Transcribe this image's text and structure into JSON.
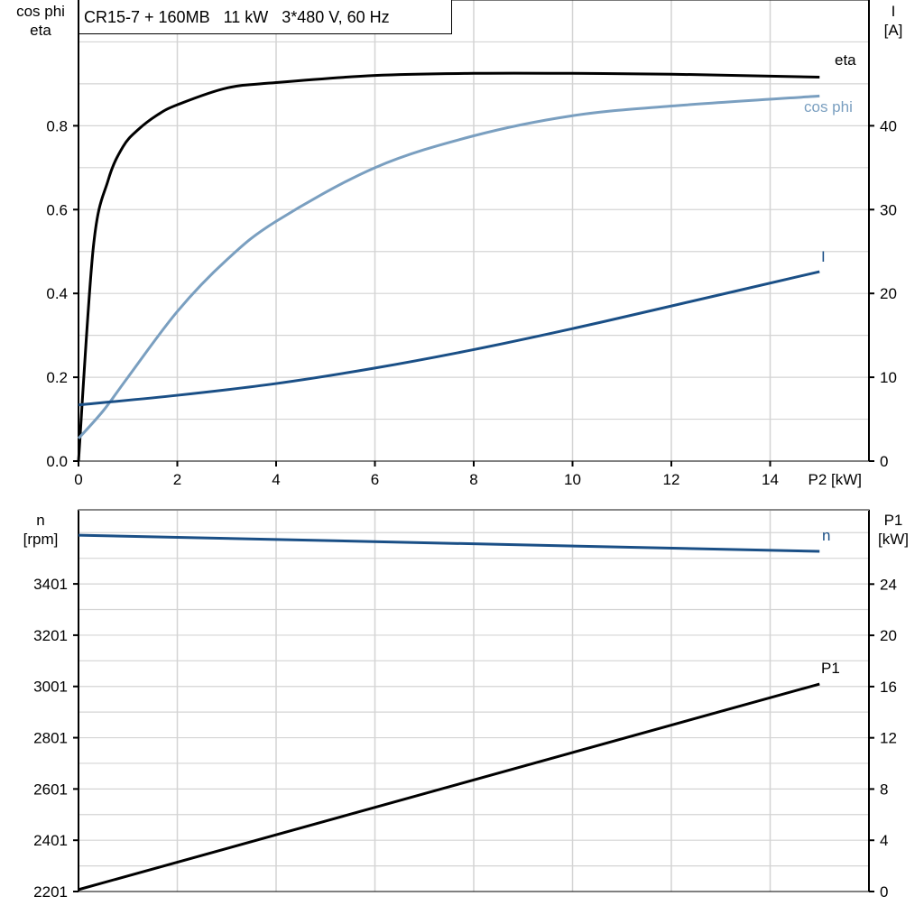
{
  "title": "CR15-7 + 160MB   11 kW   3*480 V, 60 Hz",
  "colors": {
    "eta": "#000000",
    "cos_phi": "#7a9fc0",
    "I": "#1a4f86",
    "n": "#1a4f86",
    "P1": "#000000",
    "grid": "#d4d4d4"
  },
  "chart_data": [
    {
      "type": "line",
      "xlabel": "P2 [kW]",
      "ylabel_left": [
        "cos phi",
        "eta"
      ],
      "ylabel_right": [
        "I",
        "[A]"
      ],
      "xlim": [
        0,
        16
      ],
      "ylim_left": [
        0,
        1.1
      ],
      "ylim_right": [
        0,
        55
      ],
      "x_ticks": [
        "0",
        "2",
        "4",
        "6",
        "8",
        "10",
        "12",
        "14"
      ],
      "y_left_ticks": [
        "0.0",
        "0.2",
        "0.4",
        "0.6",
        "0.8"
      ],
      "y_right_ticks": [
        "0",
        "10",
        "20",
        "30",
        "40"
      ],
      "grid": true,
      "series": [
        {
          "name": "eta",
          "axis": "left",
          "x": [
            0,
            0.3,
            0.6,
            0.9,
            1.2,
            1.6,
            2,
            3,
            4,
            6,
            8,
            10,
            12,
            15
          ],
          "y": [
            0,
            0.51,
            0.67,
            0.75,
            0.79,
            0.826,
            0.85,
            0.89,
            0.903,
            0.92,
            0.925,
            0.925,
            0.923,
            0.916
          ]
        },
        {
          "name": "cos phi",
          "axis": "left",
          "x": [
            0,
            0.5,
            1,
            2,
            3,
            4,
            6,
            8,
            10,
            12,
            15
          ],
          "y": [
            0.054,
            0.12,
            0.2,
            0.357,
            0.48,
            0.572,
            0.7,
            0.776,
            0.824,
            0.847,
            0.871
          ]
        },
        {
          "name": "I",
          "axis": "right",
          "x": [
            0,
            2,
            4,
            6,
            8,
            10,
            12,
            15
          ],
          "y": [
            6.7,
            7.85,
            9.25,
            11.1,
            13.3,
            15.8,
            18.5,
            22.6
          ]
        }
      ]
    },
    {
      "type": "line",
      "ylabel_left": [
        "n",
        "[rpm]"
      ],
      "ylabel_right": [
        "P1",
        "[kW]"
      ],
      "xlim": [
        0,
        16
      ],
      "ylim_left": [
        2201,
        3690
      ],
      "ylim_right": [
        0,
        29.8
      ],
      "y_left_ticks": [
        "2201",
        "2401",
        "2601",
        "2801",
        "3001",
        "3201",
        "3401"
      ],
      "y_right_ticks": [
        "0",
        "4",
        "8",
        "12",
        "16",
        "20",
        "24"
      ],
      "grid": true,
      "series": [
        {
          "name": "n",
          "axis": "left",
          "x": [
            0,
            15
          ],
          "y": [
            3591,
            3528
          ]
        },
        {
          "name": "P1",
          "axis": "right",
          "x": [
            0,
            15
          ],
          "y": [
            0.15,
            16.2
          ]
        }
      ]
    }
  ]
}
